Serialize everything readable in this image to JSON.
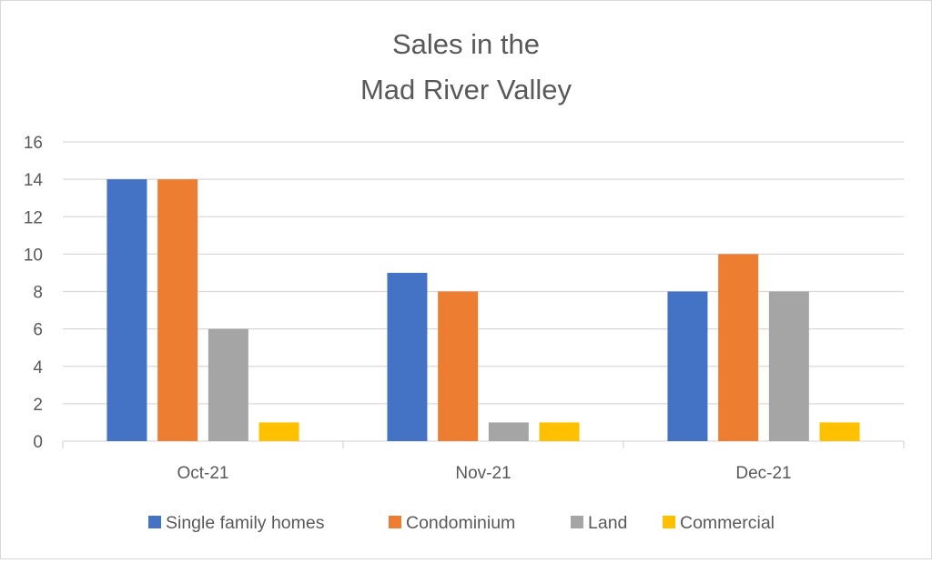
{
  "chart_data": {
    "type": "bar",
    "title": [
      "Sales in the",
      "Mad River Valley"
    ],
    "categories": [
      "Oct-21",
      "Nov-21",
      "Dec-21"
    ],
    "series": [
      {
        "name": "Single family homes",
        "values": [
          14,
          9,
          8
        ],
        "color": "#4472C4"
      },
      {
        "name": "Condominium",
        "values": [
          14,
          8,
          10
        ],
        "color": "#ED7D31"
      },
      {
        "name": "Land",
        "values": [
          6,
          1,
          8
        ],
        "color": "#A5A5A5"
      },
      {
        "name": "Commercial",
        "values": [
          1,
          1,
          1
        ],
        "color": "#FFC000"
      }
    ],
    "ylim": [
      0,
      16
    ],
    "yticks": [
      0,
      2,
      4,
      6,
      8,
      10,
      12,
      14,
      16
    ],
    "grid": true,
    "legend": "bottom",
    "xlabel": "",
    "ylabel": ""
  }
}
